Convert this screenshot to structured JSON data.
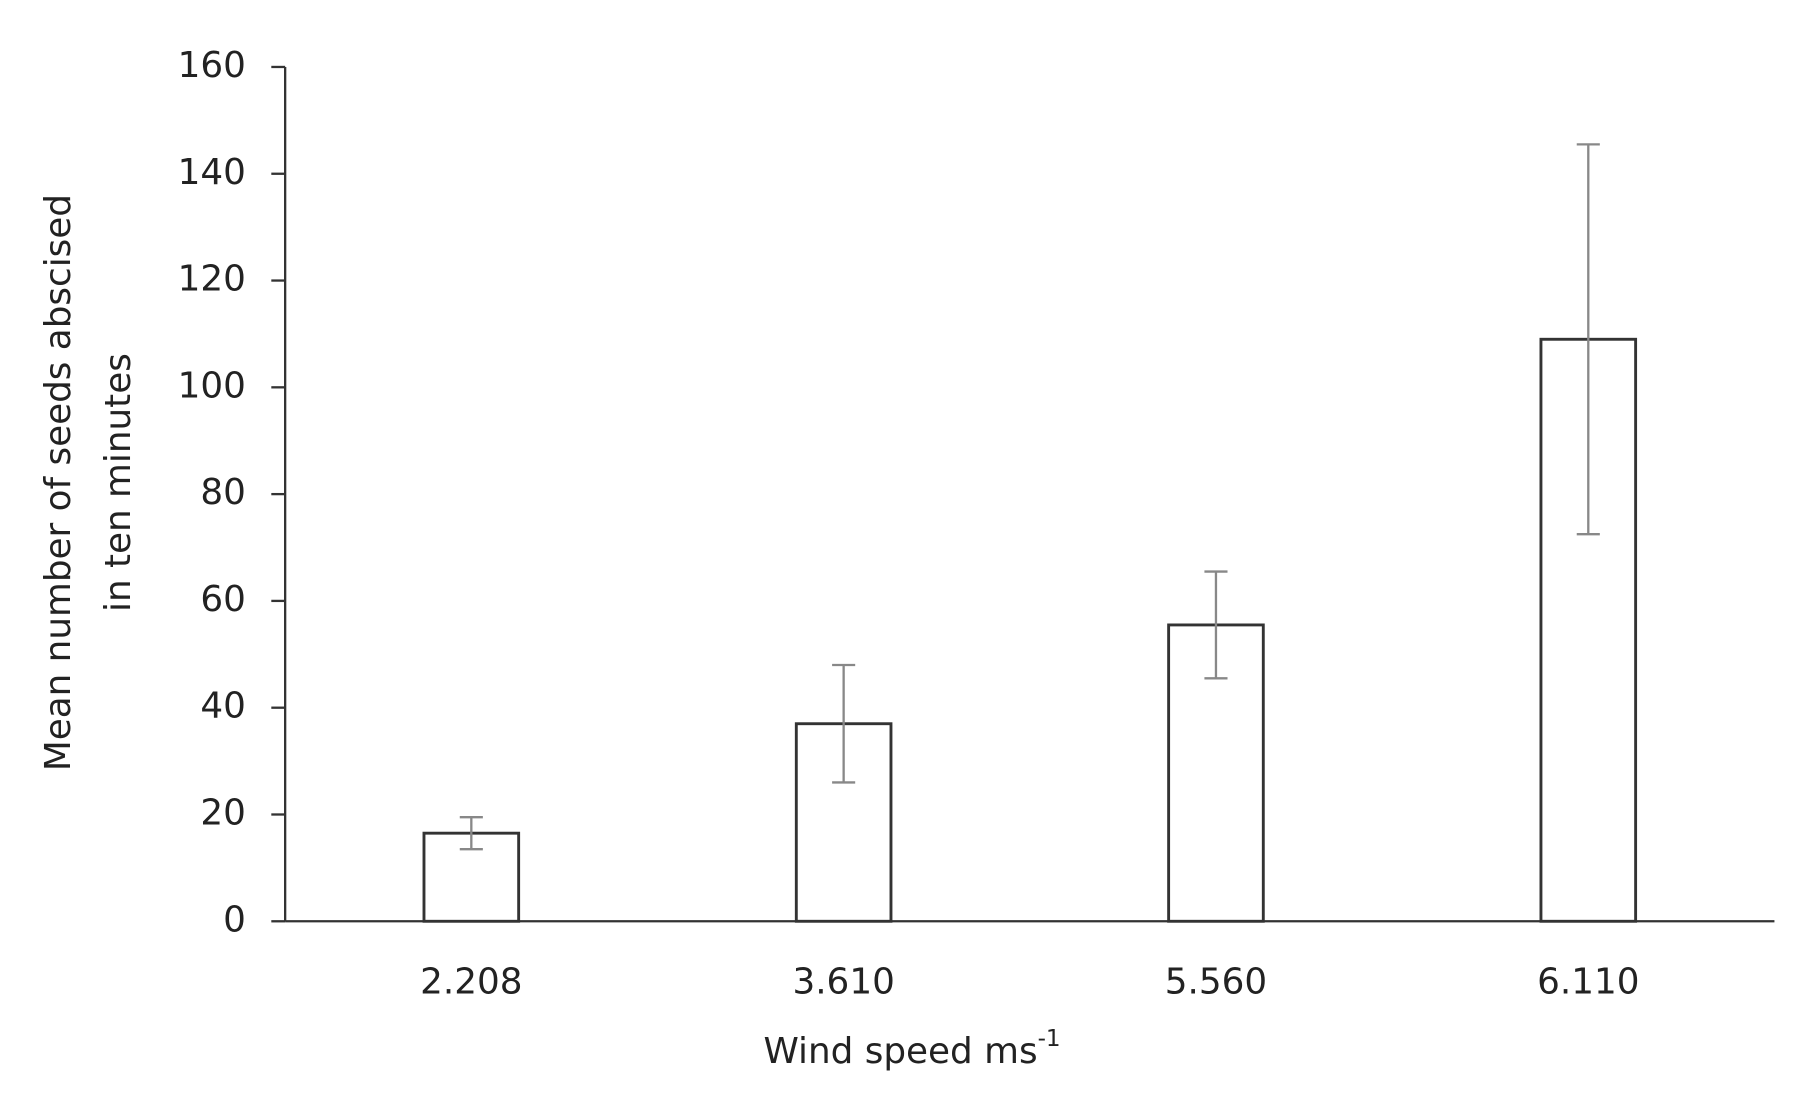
{
  "chart_data": {
    "type": "bar",
    "xlabel": "Wind speed ms",
    "xlabel_superscript": "-1",
    "ylabel": [
      "Mean number of seeds abscised",
      "in ten minutes"
    ],
    "categories": [
      "2.208",
      "3.610",
      "5.560",
      "6.110"
    ],
    "values": [
      16.5,
      37,
      55.5,
      109
    ],
    "errors": [
      3,
      11,
      10,
      36.5
    ],
    "color": "#ffffff",
    "edge_color": "#333333",
    "error_color": "#888888",
    "ylim": [
      0,
      160
    ],
    "yticks": [
      0,
      20,
      40,
      60,
      80,
      100,
      120,
      140,
      160
    ],
    "grid": false
  }
}
